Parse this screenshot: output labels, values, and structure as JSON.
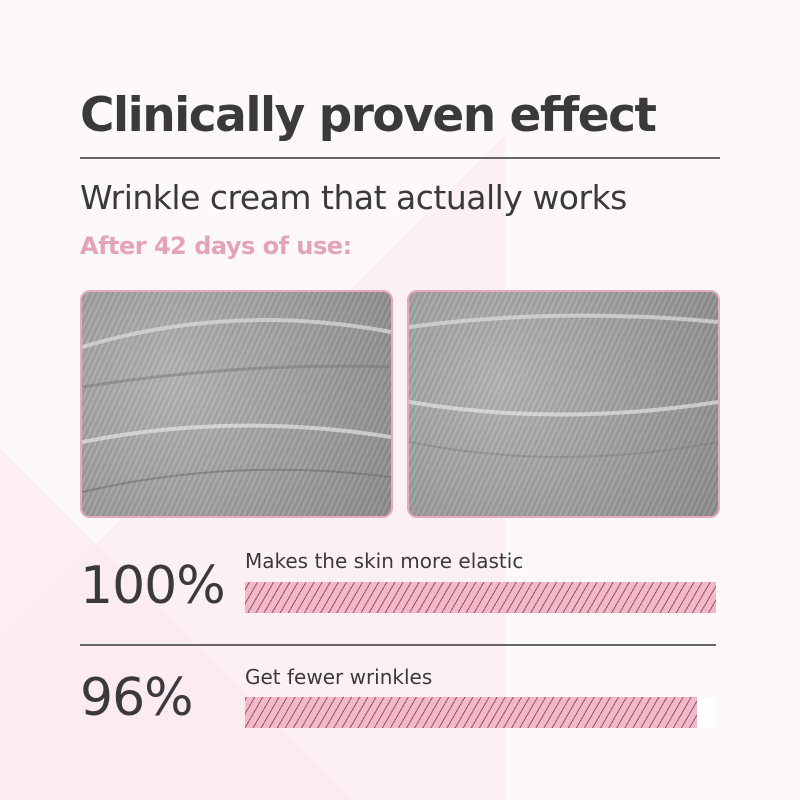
{
  "title": "Clinically proven effect",
  "subtitle": "Wrinkle cream that actually works",
  "period": "After 42 days of use:",
  "colors": {
    "accent": "#e5a3b7",
    "bar": "#f5b8c8",
    "text": "#3a3a3c"
  },
  "images": [
    {
      "semantic": "skin-texture-before"
    },
    {
      "semantic": "skin-texture-after"
    }
  ],
  "stats": [
    {
      "value": "100%",
      "label": "Makes the skin more elastic",
      "fill_percent": 100
    },
    {
      "value": "96%",
      "label": "Get fewer wrinkles",
      "fill_percent": 96
    }
  ]
}
